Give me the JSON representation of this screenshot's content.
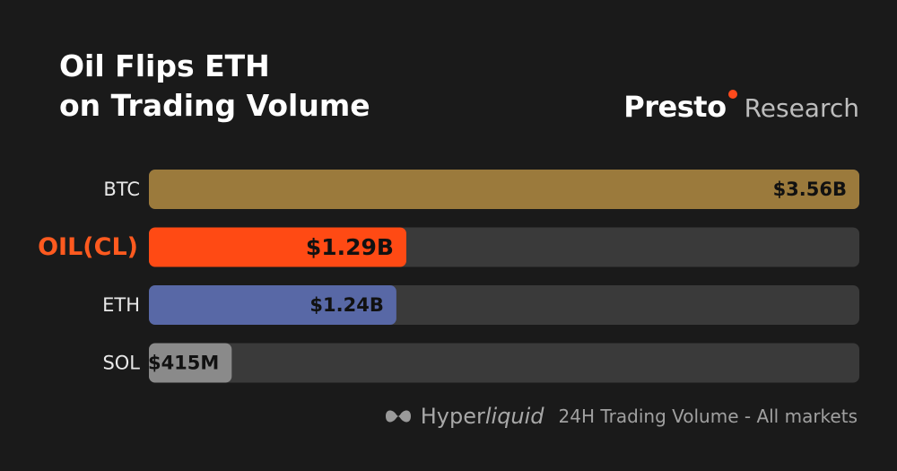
{
  "chart_data": {
    "type": "bar",
    "orientation": "horizontal",
    "title_lines": [
      "Oil Flips ETH",
      "on Trading Volume"
    ],
    "categories": [
      "BTC",
      "OIL(CL)",
      "ETH",
      "SOL"
    ],
    "values": [
      3.56,
      1.29,
      1.24,
      0.415
    ],
    "value_labels": [
      "$3.56B",
      "$1.29B",
      "$1.24B",
      "$415M"
    ],
    "unit": "USD billions (24H trading volume)",
    "xlim": [
      0,
      3.56
    ],
    "highlight": "OIL(CL)",
    "colors": [
      "#9b7a3c",
      "#ff4a14",
      "#5868a6",
      "#8a8a8a"
    ],
    "label_colors": [
      "#e8e8e8",
      "#ff5a1f",
      "#e8e8e8",
      "#e8e8e8"
    ],
    "track_color": "#3a3a3a"
  },
  "brand": {
    "name": "Presto",
    "sub": "Research"
  },
  "footer": {
    "source_prefix": "Hyper",
    "source_suffix": "liquid",
    "note": "24H Trading Volume - All markets"
  }
}
